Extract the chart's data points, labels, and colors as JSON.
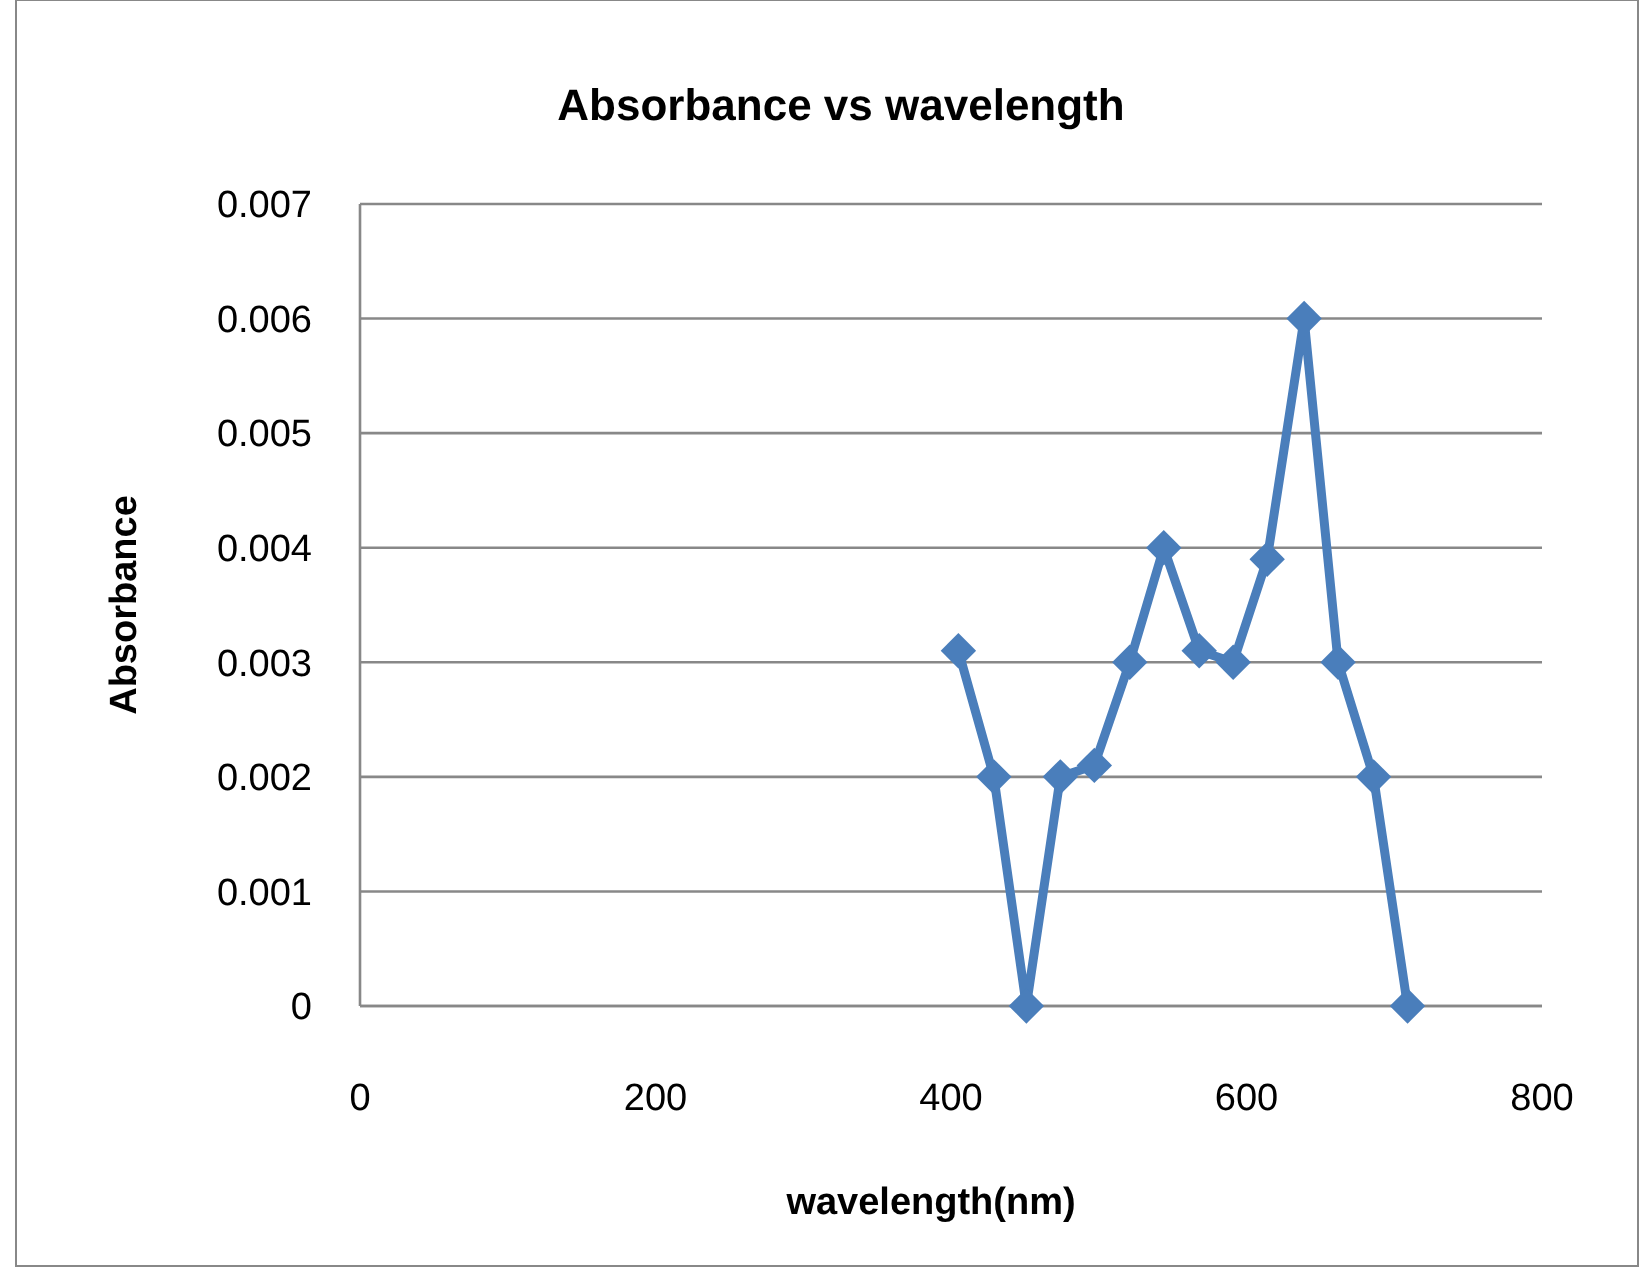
{
  "chart_data": {
    "type": "line",
    "title": "Absorbance vs wavelength",
    "xlabel": "wavelength(nm)",
    "ylabel": "Absorbance",
    "x": [
      405,
      429,
      451,
      474,
      497,
      521,
      544,
      568,
      591,
      614,
      639,
      662,
      686,
      709
    ],
    "series": [
      {
        "color": "#4a7ebb",
        "values": [
          0.0031,
          0.002,
          0,
          0.002,
          0.0021,
          0.003,
          0.004,
          0.0031,
          0.003,
          0.0039,
          0.006,
          0.003,
          0.002,
          0
        ]
      }
    ],
    "xlim": [
      0,
      800
    ],
    "xticks": [
      0,
      200,
      400,
      600,
      800
    ],
    "ylim": [
      0,
      0.007
    ],
    "yticks": [
      0,
      0.001,
      0.002,
      0.003,
      0.004,
      0.005,
      0.006,
      0.007
    ],
    "grid": "y",
    "marker": "diamond",
    "line_style": "solid"
  }
}
